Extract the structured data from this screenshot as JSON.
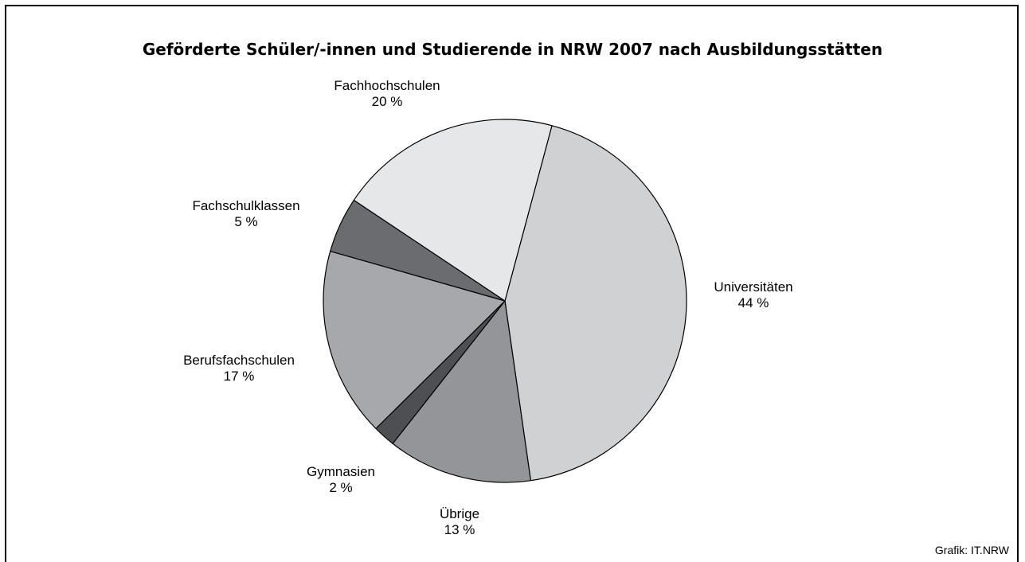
{
  "chart_data": {
    "type": "pie",
    "title": "Geförderte Schüler/-innen und Studierende in NRW 2007 nach Ausbildungsstätten",
    "source": "Grafik: IT.NRW",
    "slices": [
      {
        "label": "Universitäten",
        "value": 44,
        "value_label": "44 %",
        "color": "#d0d1d3"
      },
      {
        "label": "Übrige",
        "value": 13,
        "value_label": "13 %",
        "color": "#949598"
      },
      {
        "label": "Gymnasien",
        "value": 2,
        "value_label": "2 %",
        "color": "#4e4f52"
      },
      {
        "label": "Berufsfachschulen",
        "value": 17,
        "value_label": "17 %",
        "color": "#a7a8ab"
      },
      {
        "label": "Fachschulklassen",
        "value": 5,
        "value_label": "5 %",
        "color": "#6b6c6f"
      },
      {
        "label": "Fachhochschulen",
        "value": 20,
        "value_label": "20 %",
        "color": "#e6e7e8"
      }
    ]
  }
}
